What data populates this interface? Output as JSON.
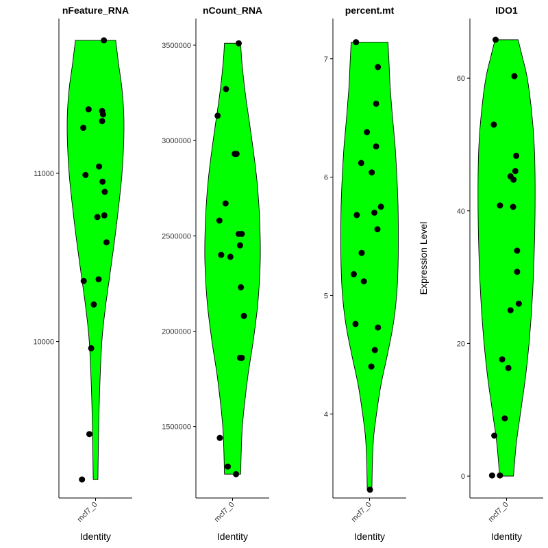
{
  "figure": {
    "ylabel": "Expression Level"
  },
  "colors": {
    "violin_fill": "#00ff00",
    "violin_stroke": "#000000",
    "point": "#000000",
    "axis": "#000000"
  },
  "chart_data": [
    {
      "type": "violin",
      "title": "nFeature_RNA",
      "xlabel": "Identity",
      "categories": [
        "mcf7_0"
      ],
      "ylim": [
        9070,
        11920
      ],
      "yticks": [
        10000,
        11000
      ],
      "ytick_labels": [
        "10000",
        "11000"
      ],
      "violin_range": [
        9180,
        11790
      ],
      "density": [
        [
          9180,
          0.08
        ],
        [
          9400,
          0.1
        ],
        [
          9700,
          0.14
        ],
        [
          10000,
          0.22
        ],
        [
          10200,
          0.34
        ],
        [
          10400,
          0.5
        ],
        [
          10600,
          0.66
        ],
        [
          10800,
          0.8
        ],
        [
          11000,
          0.92
        ],
        [
          11200,
          0.98
        ],
        [
          11350,
          0.98
        ],
        [
          11500,
          0.92
        ],
        [
          11650,
          0.8
        ],
        [
          11790,
          0.7
        ]
      ],
      "points": [
        {
          "x": 0.38,
          "y": 11790
        },
        {
          "x": -0.56,
          "y": 11270
        },
        {
          "x": -0.32,
          "y": 11380
        },
        {
          "x": 0.3,
          "y": 11370
        },
        {
          "x": 0.34,
          "y": 11350
        },
        {
          "x": 0.3,
          "y": 11310
        },
        {
          "x": 0.16,
          "y": 11040
        },
        {
          "x": 0.42,
          "y": 10890
        },
        {
          "x": -0.46,
          "y": 10990
        },
        {
          "x": 0.32,
          "y": 10950
        },
        {
          "x": 0.08,
          "y": 10740
        },
        {
          "x": 0.4,
          "y": 10750
        },
        {
          "x": 0.5,
          "y": 10590
        },
        {
          "x": -0.54,
          "y": 10360
        },
        {
          "x": 0.14,
          "y": 10370
        },
        {
          "x": -0.08,
          "y": 10220
        },
        {
          "x": -0.2,
          "y": 9960
        },
        {
          "x": -0.28,
          "y": 9450
        },
        {
          "x": -0.62,
          "y": 9180
        }
      ]
    },
    {
      "type": "violin",
      "title": "nCount_RNA",
      "xlabel": "Identity",
      "categories": [
        "mcf7_0"
      ],
      "ylim": [
        1125000,
        3640000
      ],
      "yticks": [
        1500000,
        2000000,
        2500000,
        3000000,
        3500000
      ],
      "ytick_labels": [
        "1500000",
        "2000000",
        "2500000",
        "3000000",
        "3500000"
      ],
      "violin_range": [
        1250000,
        3510000
      ],
      "density": [
        [
          1250000,
          0.28
        ],
        [
          1500000,
          0.34
        ],
        [
          1750000,
          0.52
        ],
        [
          1950000,
          0.72
        ],
        [
          2150000,
          0.88
        ],
        [
          2350000,
          0.96
        ],
        [
          2500000,
          0.96
        ],
        [
          2650000,
          0.92
        ],
        [
          2800000,
          0.84
        ],
        [
          2950000,
          0.72
        ],
        [
          3100000,
          0.58
        ],
        [
          3250000,
          0.44
        ],
        [
          3400000,
          0.33
        ],
        [
          3510000,
          0.28
        ]
      ],
      "points": [
        {
          "x": 0.28,
          "y": 3510000
        },
        {
          "x": -0.3,
          "y": 3270000
        },
        {
          "x": -0.68,
          "y": 3130000
        },
        {
          "x": 0.1,
          "y": 2930000
        },
        {
          "x": 0.18,
          "y": 2930000
        },
        {
          "x": -0.32,
          "y": 2670000
        },
        {
          "x": -0.6,
          "y": 2580000
        },
        {
          "x": 0.28,
          "y": 2510000
        },
        {
          "x": 0.42,
          "y": 2510000
        },
        {
          "x": -0.52,
          "y": 2400000
        },
        {
          "x": -0.1,
          "y": 2390000
        },
        {
          "x": 0.34,
          "y": 2450000
        },
        {
          "x": 0.38,
          "y": 2230000
        },
        {
          "x": 0.52,
          "y": 2080000
        },
        {
          "x": 0.34,
          "y": 1860000
        },
        {
          "x": 0.42,
          "y": 1860000
        },
        {
          "x": -0.58,
          "y": 1440000
        },
        {
          "x": -0.22,
          "y": 1290000
        },
        {
          "x": 0.16,
          "y": 1250000
        }
      ]
    },
    {
      "type": "violin",
      "title": "percent.mt",
      "xlabel": "Identity",
      "categories": [
        "mcf7_0"
      ],
      "ylim": [
        3.29,
        7.34
      ],
      "yticks": [
        4,
        5,
        6,
        7
      ],
      "ytick_labels": [
        "4",
        "5",
        "6",
        "7"
      ],
      "violin_range": [
        3.36,
        7.14
      ],
      "density": [
        [
          3.36,
          0.08
        ],
        [
          3.6,
          0.1
        ],
        [
          3.8,
          0.14
        ],
        [
          4.0,
          0.24
        ],
        [
          4.25,
          0.4
        ],
        [
          4.5,
          0.62
        ],
        [
          4.75,
          0.82
        ],
        [
          5.0,
          0.94
        ],
        [
          5.25,
          0.99
        ],
        [
          5.5,
          1.0
        ],
        [
          5.75,
          0.99
        ],
        [
          6.0,
          0.95
        ],
        [
          6.25,
          0.89
        ],
        [
          6.5,
          0.8
        ],
        [
          6.75,
          0.72
        ],
        [
          7.0,
          0.67
        ],
        [
          7.14,
          0.64
        ]
      ],
      "points": [
        {
          "x": -0.62,
          "y": 7.14
        },
        {
          "x": 0.38,
          "y": 6.93
        },
        {
          "x": 0.3,
          "y": 6.62
        },
        {
          "x": -0.12,
          "y": 6.38
        },
        {
          "x": 0.3,
          "y": 6.26
        },
        {
          "x": -0.38,
          "y": 6.12
        },
        {
          "x": 0.1,
          "y": 6.04
        },
        {
          "x": 0.52,
          "y": 5.75
        },
        {
          "x": -0.58,
          "y": 5.68
        },
        {
          "x": 0.22,
          "y": 5.7
        },
        {
          "x": 0.36,
          "y": 5.56
        },
        {
          "x": -0.36,
          "y": 5.36
        },
        {
          "x": -0.72,
          "y": 5.18
        },
        {
          "x": -0.26,
          "y": 5.12
        },
        {
          "x": -0.64,
          "y": 4.76
        },
        {
          "x": 0.38,
          "y": 4.73
        },
        {
          "x": 0.24,
          "y": 4.54
        },
        {
          "x": 0.08,
          "y": 4.4
        },
        {
          "x": 0.02,
          "y": 3.36
        }
      ]
    },
    {
      "type": "violin",
      "title": "IDO1",
      "xlabel": "Identity",
      "categories": [
        "mcf7_0"
      ],
      "ylim": [
        -3.3,
        69.0
      ],
      "yticks": [
        0,
        20,
        40,
        60
      ],
      "ytick_labels": [
        "0",
        "20",
        "40",
        "60"
      ],
      "violin_range": [
        0,
        65.8
      ],
      "density": [
        [
          0,
          0.24
        ],
        [
          5,
          0.34
        ],
        [
          10,
          0.5
        ],
        [
          15,
          0.66
        ],
        [
          20,
          0.78
        ],
        [
          25,
          0.87
        ],
        [
          30,
          0.93
        ],
        [
          35,
          0.97
        ],
        [
          40,
          0.99
        ],
        [
          45,
          0.99
        ],
        [
          50,
          0.96
        ],
        [
          55,
          0.87
        ],
        [
          60,
          0.72
        ],
        [
          63,
          0.56
        ],
        [
          65.8,
          0.4
        ]
      ],
      "points": [
        {
          "x": -0.5,
          "y": 65.8
        },
        {
          "x": 0.36,
          "y": 60.3
        },
        {
          "x": -0.58,
          "y": 53.0
        },
        {
          "x": 0.44,
          "y": 48.3
        },
        {
          "x": 0.4,
          "y": 46.0
        },
        {
          "x": 0.18,
          "y": 45.2
        },
        {
          "x": 0.32,
          "y": 44.7
        },
        {
          "x": -0.3,
          "y": 40.8
        },
        {
          "x": 0.3,
          "y": 40.6
        },
        {
          "x": 0.48,
          "y": 34.0
        },
        {
          "x": 0.48,
          "y": 30.8
        },
        {
          "x": 0.56,
          "y": 26.0
        },
        {
          "x": 0.18,
          "y": 25.0
        },
        {
          "x": -0.2,
          "y": 17.6
        },
        {
          "x": 0.08,
          "y": 16.3
        },
        {
          "x": -0.08,
          "y": 8.7
        },
        {
          "x": -0.56,
          "y": 6.1
        },
        {
          "x": -0.66,
          "y": 0.1
        },
        {
          "x": -0.3,
          "y": 0.1
        }
      ]
    }
  ]
}
